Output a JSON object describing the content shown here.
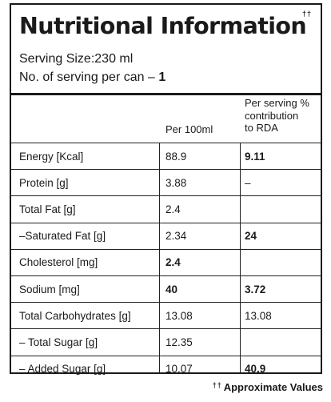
{
  "label": {
    "title": "Nutritional Information",
    "title_mark": "††",
    "serving_size_label": "Serving Size:",
    "serving_size_value": "230 ml",
    "servings_label": "No. of serving per can –",
    "servings_value": "1"
  },
  "columns": {
    "per_100": "Per 100ml",
    "rda_line1": "Per serving %",
    "rda_line2": "contribution",
    "rda_line3": "to RDA"
  },
  "rows": [
    {
      "label": "Energy [Kcal]",
      "per_100": "88.9",
      "rda": "9.11"
    },
    {
      "label": "Protein [g]",
      "per_100": "3.88",
      "rda": "–"
    },
    {
      "label": "Total Fat [g]",
      "per_100": "2.4",
      "rda": ""
    },
    {
      "label": "–Saturated Fat [g]",
      "per_100": "2.34",
      "rda": "24"
    },
    {
      "label": "Cholesterol [mg]",
      "per_100": "2.4",
      "rda": ""
    },
    {
      "label": "Sodium [mg]",
      "per_100": "40",
      "rda": "3.72"
    },
    {
      "label": "Total Carbohydrates [g]",
      "per_100": "13.08",
      "rda": "13.08"
    },
    {
      "label": "– Total Sugar [g]",
      "per_100": "12.35",
      "rda": ""
    },
    {
      "label": "– Added Sugar [g]",
      "per_100": "10.07",
      "rda": "40.9"
    }
  ],
  "footnote": {
    "mark": "††",
    "text": "Approximate Values"
  }
}
